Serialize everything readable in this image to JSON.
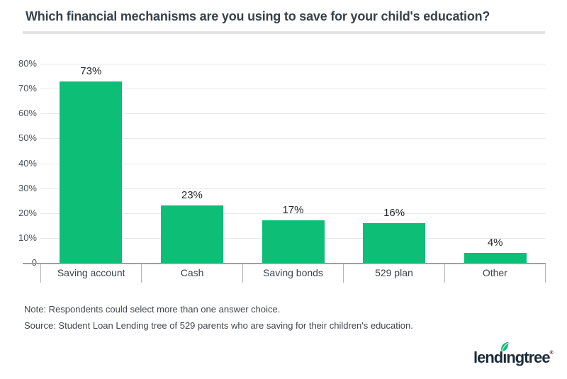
{
  "header": {
    "title": "Which financial mechanisms are you using to save for your child's education?"
  },
  "chart_data": {
    "type": "bar",
    "title": "Which financial mechanisms are you using to save for your child's education?",
    "categories": [
      "Saving account",
      "Cash",
      "Saving bonds",
      "529 plan",
      "Other"
    ],
    "values": [
      73,
      23,
      17,
      16,
      4
    ],
    "value_labels": [
      "73%",
      "23%",
      "17%",
      "16%",
      "4%"
    ],
    "xlabel": "",
    "ylabel": "",
    "ylim": [
      0,
      80
    ],
    "ytick_step": 10,
    "ytick_labels_top_to_bottom": [
      "80%",
      "70%",
      "60%",
      "50%",
      "40%",
      "30%",
      "20%",
      "10%",
      "0"
    ],
    "grid": true,
    "legend_position": "none",
    "bar_color": "#0dbe77"
  },
  "notes": {
    "note": "Note: Respondents could select more than one answer choice.",
    "source": "Source: Student Loan Lending tree of 529 parents who are saving for their children's education."
  },
  "footer": {
    "logo_text": "lendingtree",
    "trademark": "®"
  },
  "colors": {
    "bar_green": "#0dbe77",
    "leaf_green": "#0dbe77",
    "logo_navy": "#1d2a38",
    "axis_gray": "#9f9f9f",
    "tick_gray": "#b3b3b3",
    "gridline_gray": "#e9e9e9",
    "title_text": "#37424b",
    "divider_gray": "#e3e3e3"
  }
}
